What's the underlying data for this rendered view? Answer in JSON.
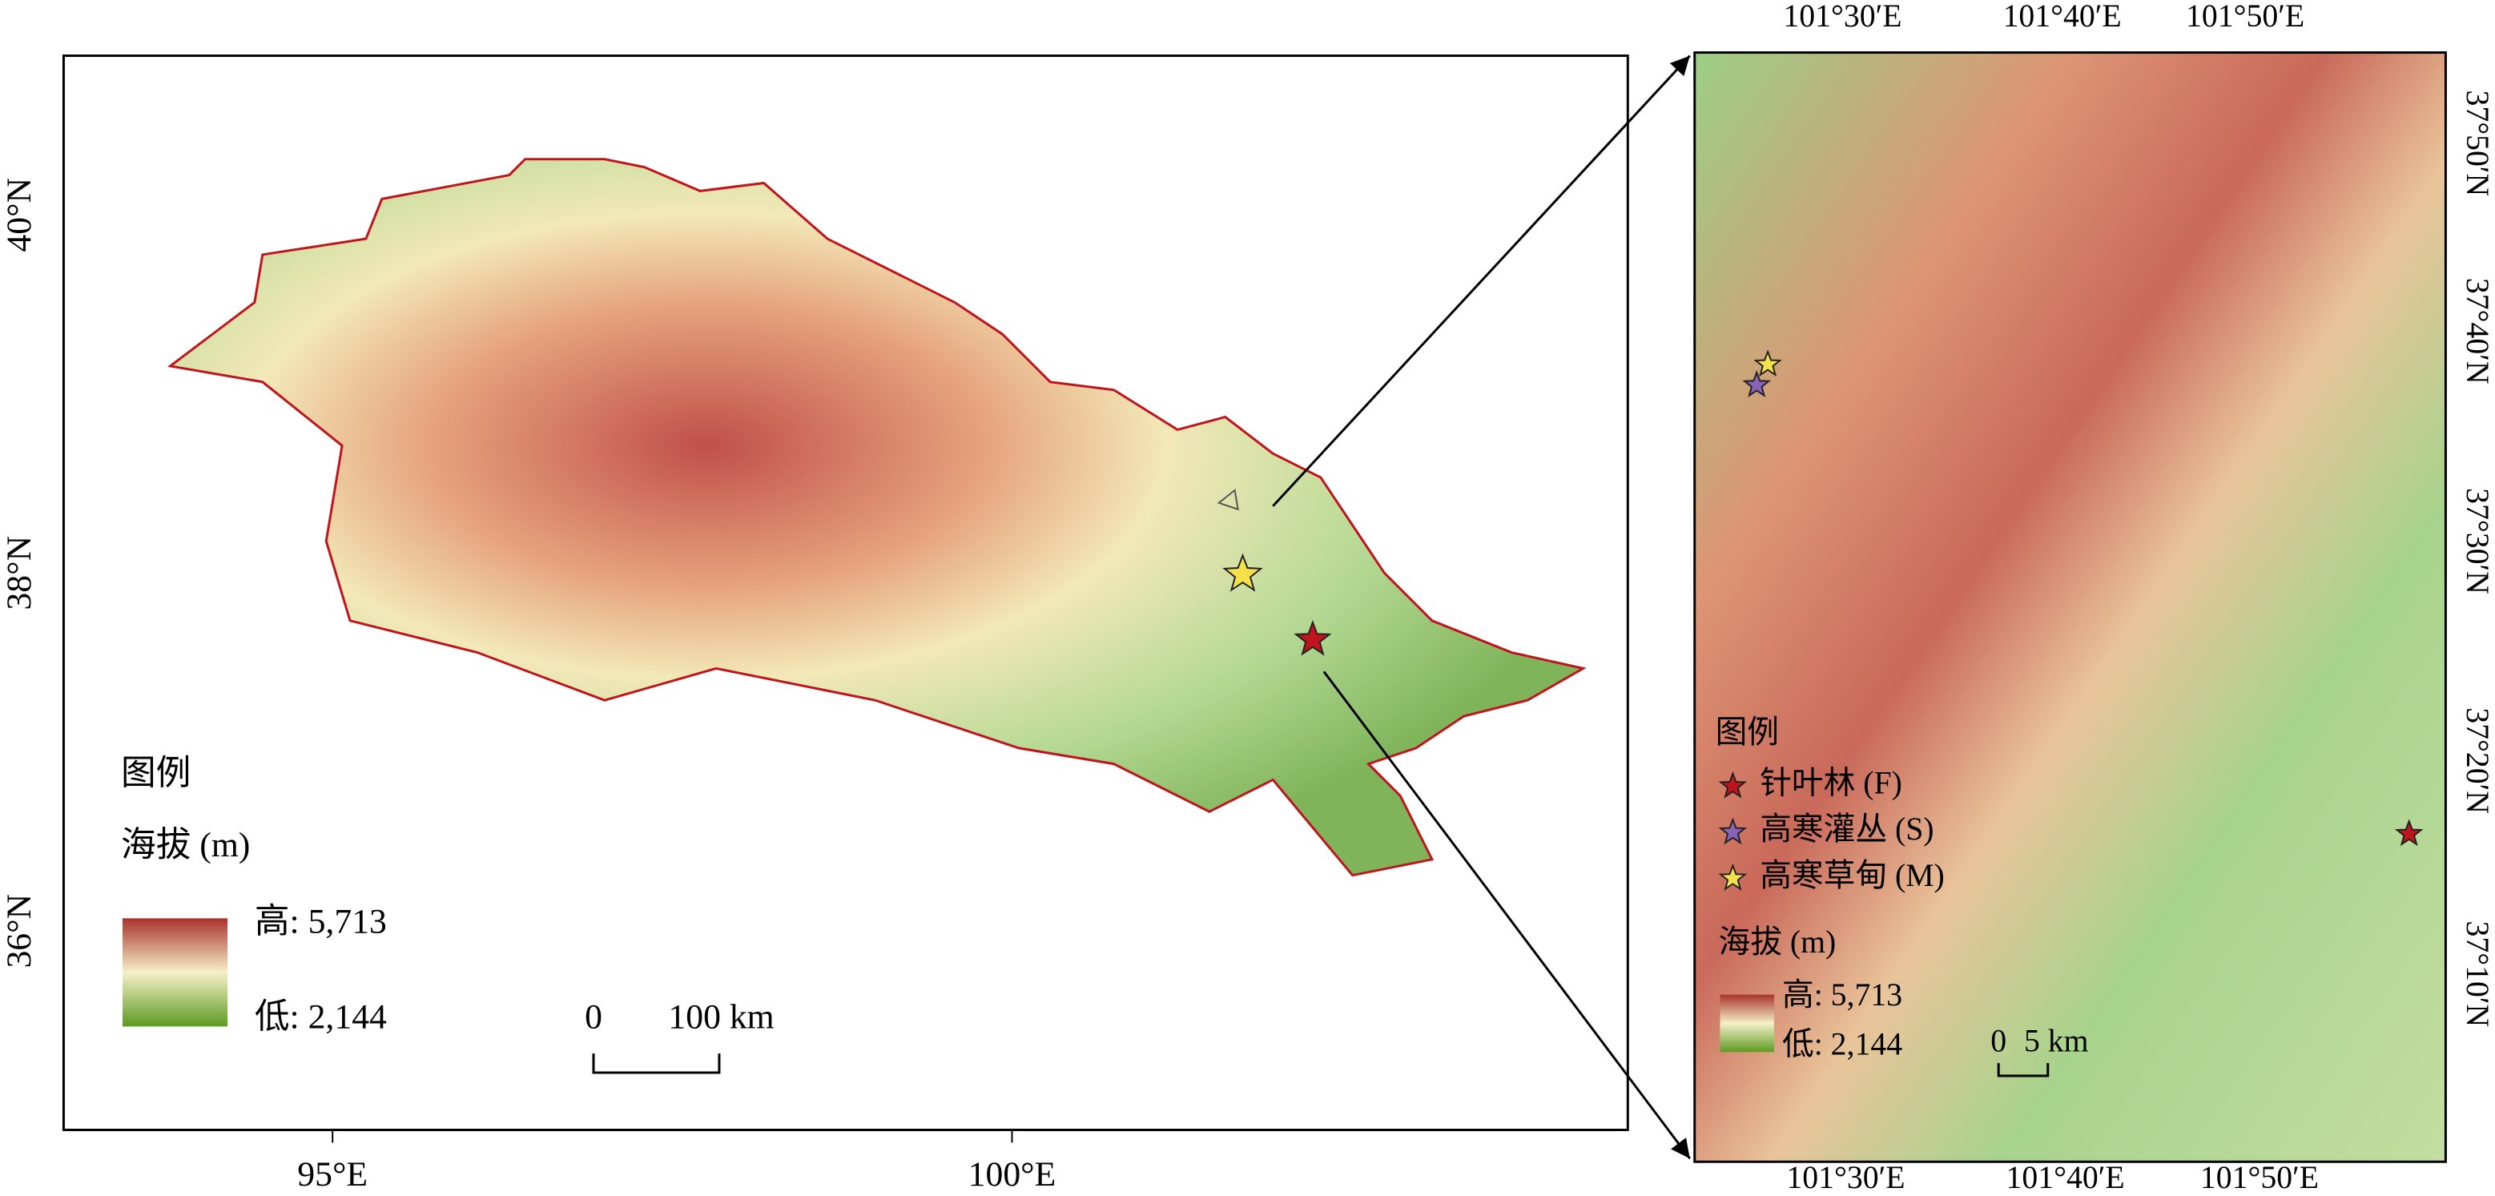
{
  "main_map": {
    "x_labels": [
      "95°E",
      "100°E"
    ],
    "y_labels": [
      "40°N",
      "38°N",
      "36°N"
    ],
    "legend": {
      "title": "图例",
      "elevation_title": "海拔 (m)",
      "high": "高: 5,713",
      "low": "低: 2,144"
    },
    "scale_bar": {
      "start": "0",
      "end": "100 km"
    }
  },
  "inset_map": {
    "top_labels": [
      "101°30′E",
      "101°40′E",
      "101°50′E"
    ],
    "bottom_labels": [
      "101°30′E",
      "101°40′E",
      "101°50′E"
    ],
    "right_labels": [
      "37°50′N",
      "37°40′N",
      "37°30′N",
      "37°20′N",
      "37°10′N"
    ],
    "legend": {
      "title": "图例",
      "items": [
        "针叶林 (F)",
        "高寒灌丛 (S)",
        "高寒草甸 (M)"
      ],
      "elevation_title": "海拔 (m)",
      "high": "高: 5,713",
      "low": "低: 2,144"
    },
    "scale_bar": {
      "start": "0",
      "end": "5 km"
    }
  }
}
